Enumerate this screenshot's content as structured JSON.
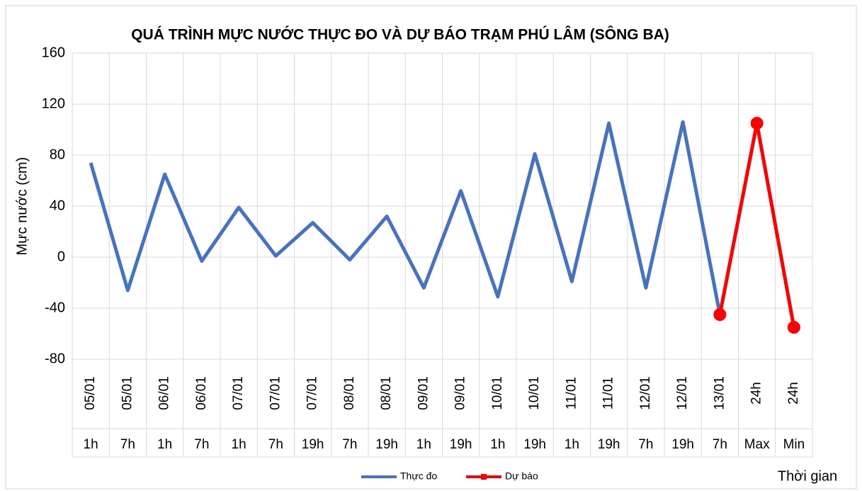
{
  "chart_data": {
    "type": "line",
    "title": "QUÁ TRÌNH MỰC NƯỚC THỰC ĐO VÀ DỰ BÁO TRẠM PHÚ LÂM (SÔNG BA)",
    "y_label": "Mực nước (cm)",
    "x_label": "Thời gian",
    "categories": [
      "05/01",
      "05/01",
      "06/01",
      "06/01",
      "07/01",
      "07/01",
      "07/01",
      "08/01",
      "08/01",
      "09/01",
      "09/01",
      "10/01",
      "10/01",
      "11/01",
      "11/01",
      "12/01",
      "12/01",
      "13/01",
      "24h",
      "24h"
    ],
    "subcategories": [
      "1h",
      "7h",
      "1h",
      "7h",
      "1h",
      "7h",
      "19h",
      "7h",
      "19h",
      "1h",
      "19h",
      "1h",
      "19h",
      "1h",
      "19h",
      "7h",
      "19h",
      "7h",
      "Max",
      "Min"
    ],
    "series": [
      {
        "name": "Thực đo",
        "color": "#4472c4",
        "marker": false,
        "values": [
          74,
          -26,
          65,
          -3,
          39,
          1,
          27,
          -2,
          32,
          -24,
          52,
          -31,
          81,
          -19,
          105,
          -24,
          106,
          -45,
          null,
          null
        ]
      },
      {
        "name": "Dự báo",
        "color": "#ff0000",
        "marker": true,
        "values": [
          null,
          null,
          null,
          null,
          null,
          null,
          null,
          null,
          null,
          null,
          null,
          null,
          null,
          null,
          null,
          null,
          null,
          -45,
          105,
          -55
        ]
      }
    ],
    "ylim": [
      -80,
      160
    ],
    "yticks": [
      -80,
      -40,
      0,
      40,
      80,
      120,
      160
    ],
    "grid": true,
    "legend": "bottom"
  }
}
